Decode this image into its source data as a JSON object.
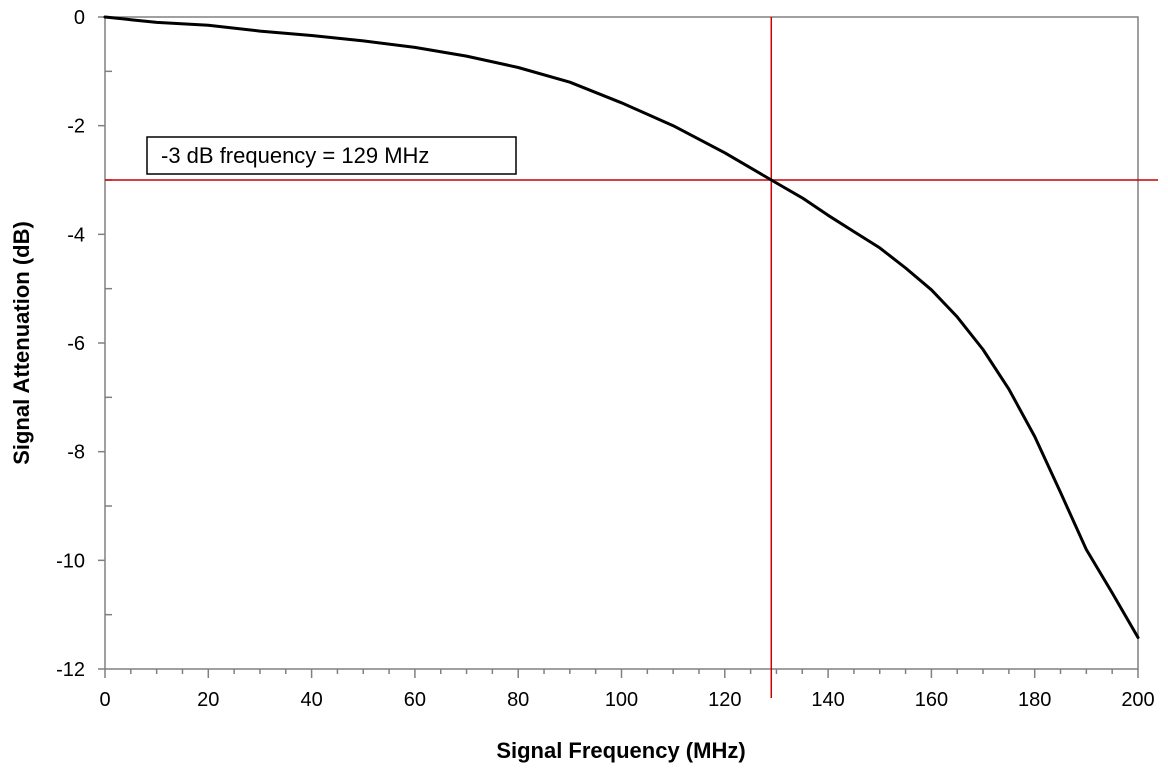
{
  "chart_data": {
    "type": "line",
    "title": "",
    "xlabel": "Signal Frequency (MHz)",
    "ylabel": "Signal Attenuation (dB)",
    "xlim": [
      0,
      200
    ],
    "ylim": [
      -12,
      0
    ],
    "x_ticks": [
      0,
      20,
      40,
      60,
      80,
      100,
      120,
      140,
      160,
      180,
      200
    ],
    "y_ticks": [
      0,
      -2,
      -4,
      -6,
      -8,
      -10,
      -12
    ],
    "x_tick_labels": [
      "0",
      "20",
      "40",
      "60",
      "80",
      "100",
      "120",
      "140",
      "160",
      "180",
      "200"
    ],
    "y_tick_labels": [
      "0",
      "-2",
      "-4",
      "-6",
      "-8",
      "-10",
      "-12"
    ],
    "grid": false,
    "legend": "none",
    "series": [
      {
        "color": "#000000",
        "x": [
          0,
          5,
          10,
          20,
          30,
          40,
          50,
          60,
          70,
          80,
          90,
          100,
          110,
          120,
          129,
          135,
          140,
          145,
          150,
          155,
          160,
          165,
          170,
          175,
          180,
          185,
          190,
          195,
          200
        ],
        "y": [
          0,
          -0.05,
          -0.1,
          -0.15,
          -0.26,
          -0.34,
          -0.44,
          -0.56,
          -0.72,
          -0.93,
          -1.2,
          -1.58,
          -2.0,
          -2.5,
          -3.0,
          -3.33,
          -3.65,
          -3.95,
          -4.25,
          -4.62,
          -5.02,
          -5.52,
          -6.12,
          -6.85,
          -7.72,
          -8.75,
          -9.8,
          -10.6,
          -11.42
        ]
      }
    ],
    "reference_lines": {
      "color": "#cc0000",
      "vertical_x": 129,
      "horizontal_y": -3
    },
    "annotation": {
      "text": "-3 dB frequency = 129 MHz",
      "anchor": "upper-left"
    }
  }
}
